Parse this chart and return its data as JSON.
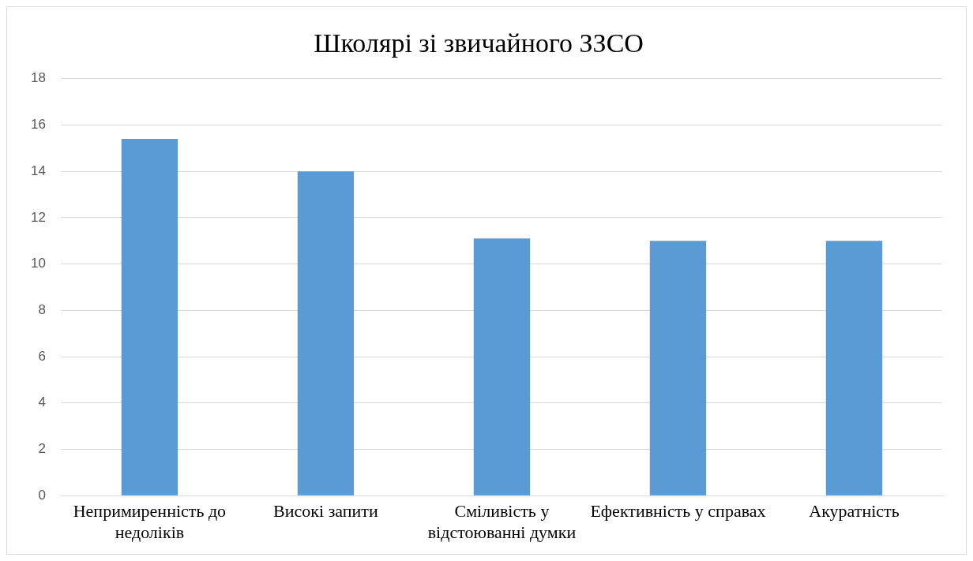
{
  "chart_data": {
    "type": "bar",
    "title": "Школярі зі звичайного ЗЗСО",
    "categories": [
      "Непримиренність до недоліків",
      "Високі запити",
      "Сміливість у відстоюванні думки",
      "Ефективність у справах",
      "Акуратність"
    ],
    "values": [
      15.4,
      14.0,
      11.1,
      11.0,
      11.0
    ],
    "color": "#5b9bd5",
    "ylim": [
      0,
      18
    ],
    "yticks": [
      0,
      2,
      4,
      6,
      8,
      10,
      12,
      14,
      16,
      18
    ],
    "grid": "y"
  }
}
